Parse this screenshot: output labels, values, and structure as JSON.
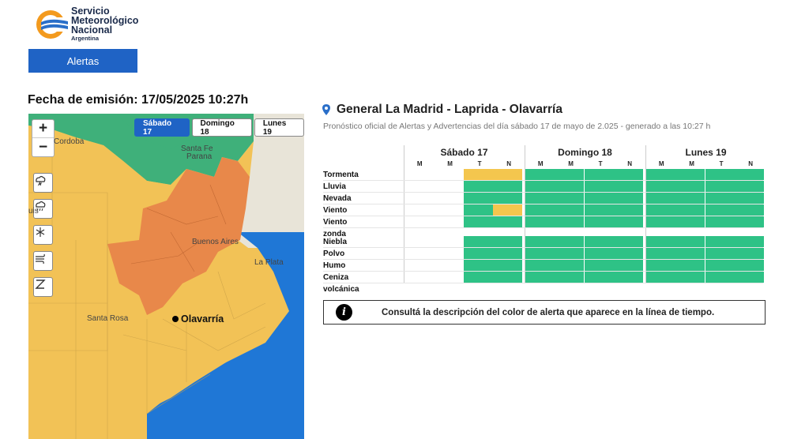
{
  "logo": {
    "line1": "Servicio",
    "line2": "Meteorológico",
    "line3": "Nacional",
    "line4": "Argentina"
  },
  "nav": {
    "alerts_label": "Alertas"
  },
  "emission": "Fecha de emisión: 17/05/2025 10:27h",
  "map": {
    "zoom_in": "+",
    "zoom_out": "−",
    "tabs": [
      {
        "label": "Sábado 17",
        "active": true
      },
      {
        "label": "Domingo 18",
        "active": false
      },
      {
        "label": "Lunes 19",
        "active": false
      }
    ],
    "labels": {
      "cordoba": "Cordoba",
      "santa_fe": "Santa Fe",
      "parana": "Parana",
      "buenos_aires": "Buenos Aires",
      "la_plata": "La Plata",
      "santa_rosa": "Santa Rosa",
      "olavarria": "Olavarría",
      "luis": "uis"
    },
    "tools": [
      "storm-icon",
      "rain-icon",
      "snow-icon",
      "wind-icon",
      "zonda-icon"
    ],
    "colors": {
      "orange": "#e8884a",
      "yellow": "#f2c256",
      "green": "#3fb07a",
      "water": "#1f77d6",
      "land": "#e8e4d8"
    }
  },
  "forecast": {
    "location": "General La Madrid - Laprida - Olavarría",
    "subtitle": "Pronóstico oficial de Alertas y Advertencias del día sábado 17 de mayo de 2.025 - generado a las 10:27 h",
    "days": [
      {
        "name": "Sábado 17",
        "slots": [
          "M",
          "M",
          "T",
          "N"
        ]
      },
      {
        "name": "Domingo 18",
        "slots": [
          "M",
          "M",
          "T",
          "N"
        ]
      },
      {
        "name": "Lunes 19",
        "slots": [
          "M",
          "M",
          "T",
          "N"
        ]
      }
    ],
    "group1": [
      {
        "label": "Tormenta",
        "cells": [
          "e",
          "e",
          "y",
          "y",
          "g",
          "g",
          "g",
          "g",
          "g",
          "g",
          "g",
          "g"
        ]
      },
      {
        "label": "Lluvia",
        "cells": [
          "e",
          "e",
          "g",
          "g",
          "g",
          "g",
          "g",
          "g",
          "g",
          "g",
          "g",
          "g"
        ]
      },
      {
        "label": "Nevada",
        "cells": [
          "e",
          "e",
          "g",
          "g",
          "g",
          "g",
          "g",
          "g",
          "g",
          "g",
          "g",
          "g"
        ]
      },
      {
        "label": "Viento",
        "cells": [
          "e",
          "e",
          "g",
          "y",
          "g",
          "g",
          "g",
          "g",
          "g",
          "g",
          "g",
          "g"
        ]
      },
      {
        "label": "Viento zonda",
        "cells": [
          "e",
          "e",
          "g",
          "g",
          "g",
          "g",
          "g",
          "g",
          "g",
          "g",
          "g",
          "g"
        ]
      }
    ],
    "group2": [
      {
        "label": "Niebla",
        "cells": [
          "e",
          "e",
          "g",
          "g",
          "g",
          "g",
          "g",
          "g",
          "g",
          "g",
          "g",
          "g"
        ]
      },
      {
        "label": "Polvo",
        "cells": [
          "e",
          "e",
          "g",
          "g",
          "g",
          "g",
          "g",
          "g",
          "g",
          "g",
          "g",
          "g"
        ]
      },
      {
        "label": "Humo",
        "cells": [
          "e",
          "e",
          "g",
          "g",
          "g",
          "g",
          "g",
          "g",
          "g",
          "g",
          "g",
          "g"
        ]
      },
      {
        "label": "Ceniza volcánica",
        "cells": [
          "e",
          "e",
          "g",
          "g",
          "g",
          "g",
          "g",
          "g",
          "g",
          "g",
          "g",
          "g"
        ]
      }
    ],
    "colors": {
      "green": "#2ec286",
      "yellow": "#f4c64e"
    }
  },
  "info": {
    "icon": "info-icon",
    "icon_glyph": "i",
    "text": "Consultá la descripción del color de alerta que aparece en la línea de tiempo."
  }
}
